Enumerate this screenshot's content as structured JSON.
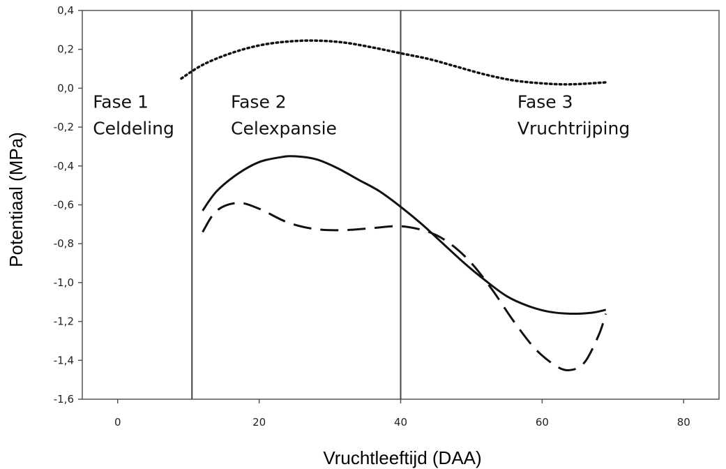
{
  "chart_data": {
    "type": "line",
    "title": "",
    "xlabel": "Vruchtleeftijd (DAA)",
    "ylabel": "Potentiaal (MPa)",
    "xlim": [
      -5,
      85
    ],
    "ylim": [
      -1.6,
      0.4
    ],
    "x_ticks": [
      0,
      20,
      40,
      60,
      80
    ],
    "x_tick_labels": [
      "0",
      "20",
      "40",
      "60",
      "80"
    ],
    "y_ticks": [
      0.4,
      0.2,
      0.0,
      -0.2,
      -0.4,
      -0.6,
      -0.8,
      -1.0,
      -1.2,
      -1.4,
      -1.6
    ],
    "y_tick_labels": [
      "0,4",
      "0,2",
      "0,0",
      "-0,2",
      "-0,4",
      "-0,6",
      "-0,8",
      "-1,0",
      "-1,2",
      "-1,4",
      "-1,6"
    ],
    "grid": false,
    "legend": "none",
    "phase_boundaries": [
      10.5,
      40
    ],
    "phases": [
      {
        "line1": "Fase 1",
        "line2": "Celdeling",
        "x": -3.5,
        "y": -0.1
      },
      {
        "line1": "Fase 2",
        "line2": "Celexpansie",
        "x": 16,
        "y": -0.1
      },
      {
        "line1": "Fase 3",
        "line2": "Vruchtrijping",
        "x": 56.5,
        "y": -0.1
      }
    ],
    "series": [
      {
        "style": "dotted",
        "x": [
          9,
          12,
          16,
          20,
          24,
          28,
          32,
          36,
          40,
          44,
          48,
          52,
          56,
          60,
          64,
          69
        ],
        "y": [
          0.05,
          0.12,
          0.18,
          0.22,
          0.24,
          0.245,
          0.235,
          0.21,
          0.18,
          0.15,
          0.11,
          0.07,
          0.04,
          0.025,
          0.02,
          0.03
        ]
      },
      {
        "style": "solid",
        "x": [
          12,
          14,
          17,
          20,
          23,
          25,
          28,
          31,
          34,
          37,
          40,
          43,
          46,
          49,
          52,
          55,
          58,
          61,
          64,
          67,
          69
        ],
        "y": [
          -0.63,
          -0.53,
          -0.44,
          -0.38,
          -0.355,
          -0.35,
          -0.365,
          -0.41,
          -0.47,
          -0.53,
          -0.61,
          -0.7,
          -0.8,
          -0.9,
          -0.99,
          -1.07,
          -1.12,
          -1.15,
          -1.16,
          -1.155,
          -1.14
        ]
      },
      {
        "style": "dashed",
        "x": [
          12,
          14,
          17,
          20,
          24,
          28,
          32,
          36,
          40,
          44,
          47,
          50,
          53,
          56,
          59,
          62,
          64,
          66,
          68,
          69
        ],
        "y": [
          -0.74,
          -0.63,
          -0.59,
          -0.62,
          -0.69,
          -0.725,
          -0.73,
          -0.72,
          -0.71,
          -0.74,
          -0.8,
          -0.9,
          -1.04,
          -1.2,
          -1.34,
          -1.43,
          -1.45,
          -1.41,
          -1.27,
          -1.16
        ]
      }
    ]
  }
}
